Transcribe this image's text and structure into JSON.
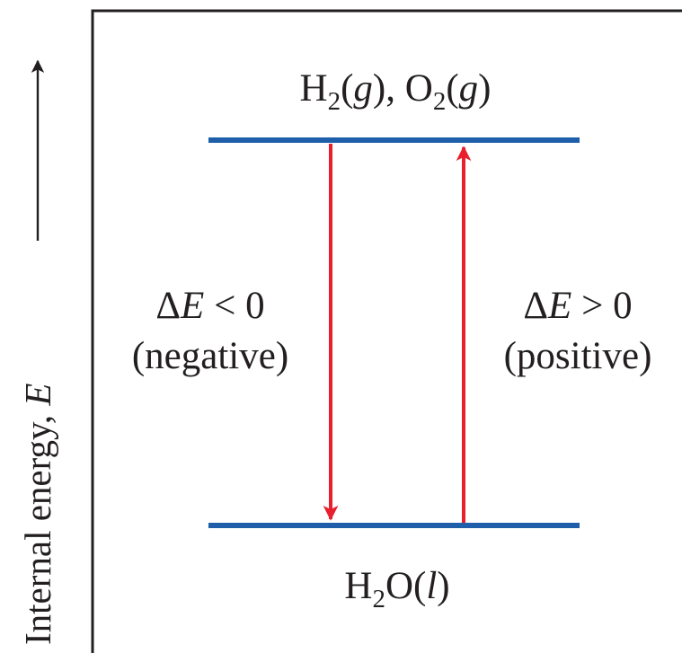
{
  "axis": {
    "label": "Internal energy, ",
    "symbol": "E"
  },
  "levels": {
    "upper": {
      "h_element": "H",
      "h_sub": "2",
      "h_open": "(",
      "h_state": "g",
      "h_close": "), ",
      "o_element": "O",
      "o_sub": "2",
      "o_open": "(",
      "o_state": "g",
      "o_close": ")"
    },
    "lower": {
      "h_element": "H",
      "h_sub": "2",
      "rest": "O(",
      "state": "l",
      "close": ")"
    }
  },
  "transitions": {
    "down": {
      "delta": "Δ",
      "symbol": "E",
      "relation": " < 0",
      "sign_text": "(negative)"
    },
    "up": {
      "delta": "Δ",
      "symbol": "E",
      "relation": " > 0",
      "sign_text": "(positive)"
    }
  },
  "colors": {
    "level_line": "#1f5faa",
    "arrow": "#e8202d",
    "frame": "#231f20",
    "text": "#231f20"
  }
}
